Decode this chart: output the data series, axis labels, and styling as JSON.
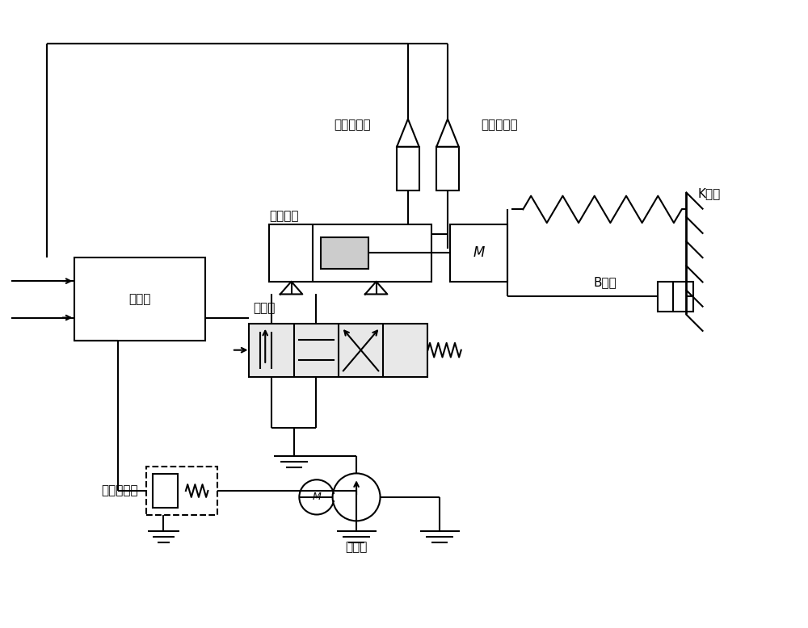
{
  "bg": "#ffffff",
  "lc": "#000000",
  "lw": 1.5,
  "lw_thick": 2.0,
  "labels": {
    "controller": "控制器",
    "pos_sensor": "位移传感器",
    "pres_sensor": "压力传感器",
    "asym_cyl": "非对称缸",
    "servo_valve": "伺服阀",
    "safety": "安全溢流阀",
    "pump": "液压泵",
    "spring": "K弹簧",
    "damper": "B阻尼",
    "M": "M",
    "K": "K"
  },
  "fontsize_label": 11,
  "fontsize_small": 10
}
